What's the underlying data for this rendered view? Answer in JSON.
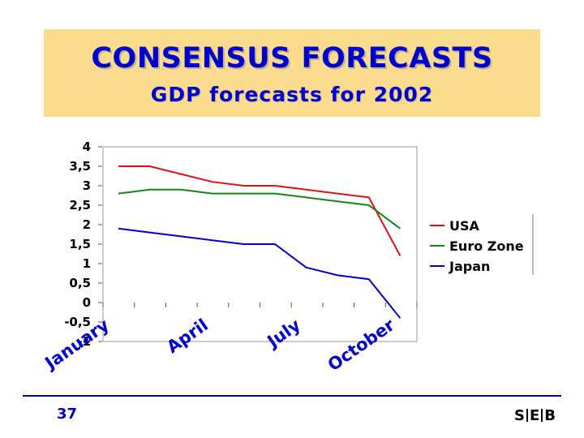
{
  "header": {
    "title": "CONSENSUS FORECASTS",
    "subtitle": "GDP forecasts for 2002"
  },
  "footer": {
    "page_number": "37",
    "logo_letters": [
      "S",
      "E",
      "B"
    ]
  },
  "colors": {
    "header_background": "#fbdc8e",
    "title_text": "#0000cc",
    "usa": "#dd1111",
    "euro_zone": "#118811",
    "japan": "#0000cc"
  },
  "chart_data": {
    "type": "line",
    "title": "",
    "xlabel": "",
    "ylabel": "",
    "ylim": [
      -1,
      4
    ],
    "y_ticks": [
      "4",
      "3,5",
      "3",
      "2,5",
      "2",
      "1,5",
      "1",
      "0,5",
      "0",
      "-0,5",
      "-1"
    ],
    "x_tick_labels": [
      "January",
      "April",
      "July",
      "October"
    ],
    "x_tick_positions": [
      0,
      3,
      6,
      9
    ],
    "n_points": 10,
    "grid": false,
    "legend_position": "right",
    "series": [
      {
        "name": "USA",
        "color": "#dd1111",
        "values": [
          3.5,
          3.5,
          3.3,
          3.1,
          3.0,
          3.0,
          2.9,
          2.8,
          2.7,
          1.2
        ]
      },
      {
        "name": "Euro Zone",
        "color": "#118811",
        "values": [
          2.8,
          2.9,
          2.9,
          2.8,
          2.8,
          2.8,
          2.7,
          2.6,
          2.5,
          1.9
        ]
      },
      {
        "name": "Japan",
        "color": "#0000cc",
        "values": [
          1.9,
          1.8,
          1.7,
          1.6,
          1.5,
          1.5,
          0.9,
          0.7,
          0.6,
          -0.4
        ]
      }
    ]
  }
}
